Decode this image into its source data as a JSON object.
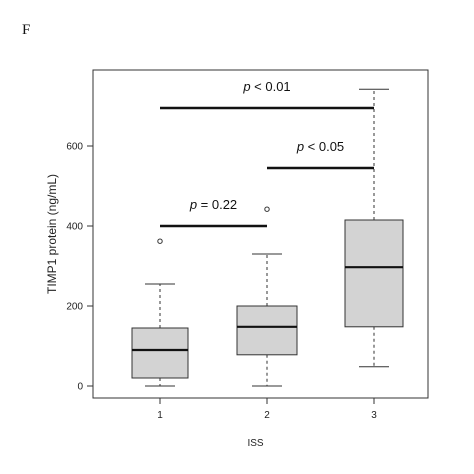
{
  "figure": {
    "panel_letter": "F"
  },
  "chart_data": {
    "type": "box",
    "xlabel": "ISS",
    "ylabel": "TIMP1 protein (ng/mL)",
    "ylim": [
      -30,
      790
    ],
    "y_ticks": [
      0,
      200,
      400,
      600
    ],
    "grid": false,
    "categories": [
      "1",
      "2",
      "3"
    ],
    "boxes": [
      {
        "category": "1",
        "whisker_low": 0,
        "q1": 20,
        "median": 90,
        "q3": 145,
        "whisker_high": 255,
        "outliers": [
          362
        ]
      },
      {
        "category": "2",
        "whisker_low": 0,
        "q1": 78,
        "median": 148,
        "q3": 200,
        "whisker_high": 330,
        "outliers": [
          442
        ]
      },
      {
        "category": "3",
        "whisker_low": 48,
        "q1": 148,
        "median": 297,
        "q3": 415,
        "whisker_high": 742,
        "outliers": []
      }
    ],
    "box_fill": "#d3d3d3",
    "comparisons": [
      {
        "from": "1",
        "to": "2",
        "y": 400,
        "p_symbol": "p",
        "p_text": " = 0.22"
      },
      {
        "from": "2",
        "to": "3",
        "y": 545,
        "p_symbol": "p",
        "p_text": " < 0.05"
      },
      {
        "from": "1",
        "to": "3",
        "y": 695,
        "p_symbol": "p",
        "p_text": " < 0.01"
      }
    ]
  }
}
